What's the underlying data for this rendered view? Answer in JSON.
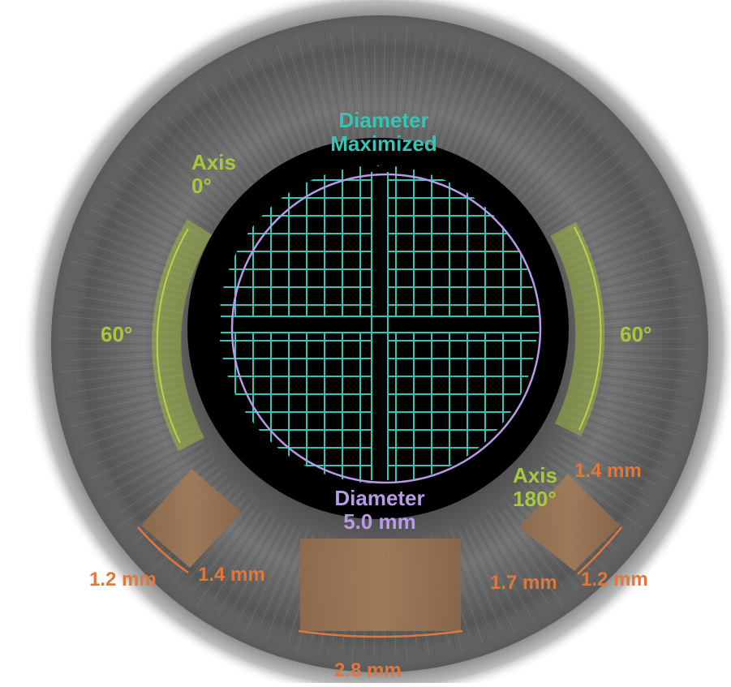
{
  "labels": {
    "diameter_maximized_line1": "Diameter",
    "diameter_maximized_line2": "Maximized",
    "axis_left_line1": "Axis",
    "axis_left_line2": "0°",
    "axis_right_line1": "Axis",
    "axis_right_line2": "180°",
    "arc_left_degrees": "60°",
    "arc_right_degrees": "60°",
    "diameter_line1": "Diameter",
    "diameter_line2": "5.0 mm",
    "incision_left_outer": "1.2 mm",
    "incision_left_inner": "1.4 mm",
    "incision_main_width": "2.8 mm",
    "incision_right_inner": "1.7 mm",
    "incision_right_outer": "1.2 mm",
    "incision_right_top": "1.4 mm"
  },
  "colors": {
    "axis_green": "#a8c83c",
    "grid_teal": "#38c4b4",
    "circle_purple": "#b89ae6",
    "incision_orange": "#e2773a",
    "iris_gray": "#6e6e6e",
    "pupil_black": "#000000"
  }
}
